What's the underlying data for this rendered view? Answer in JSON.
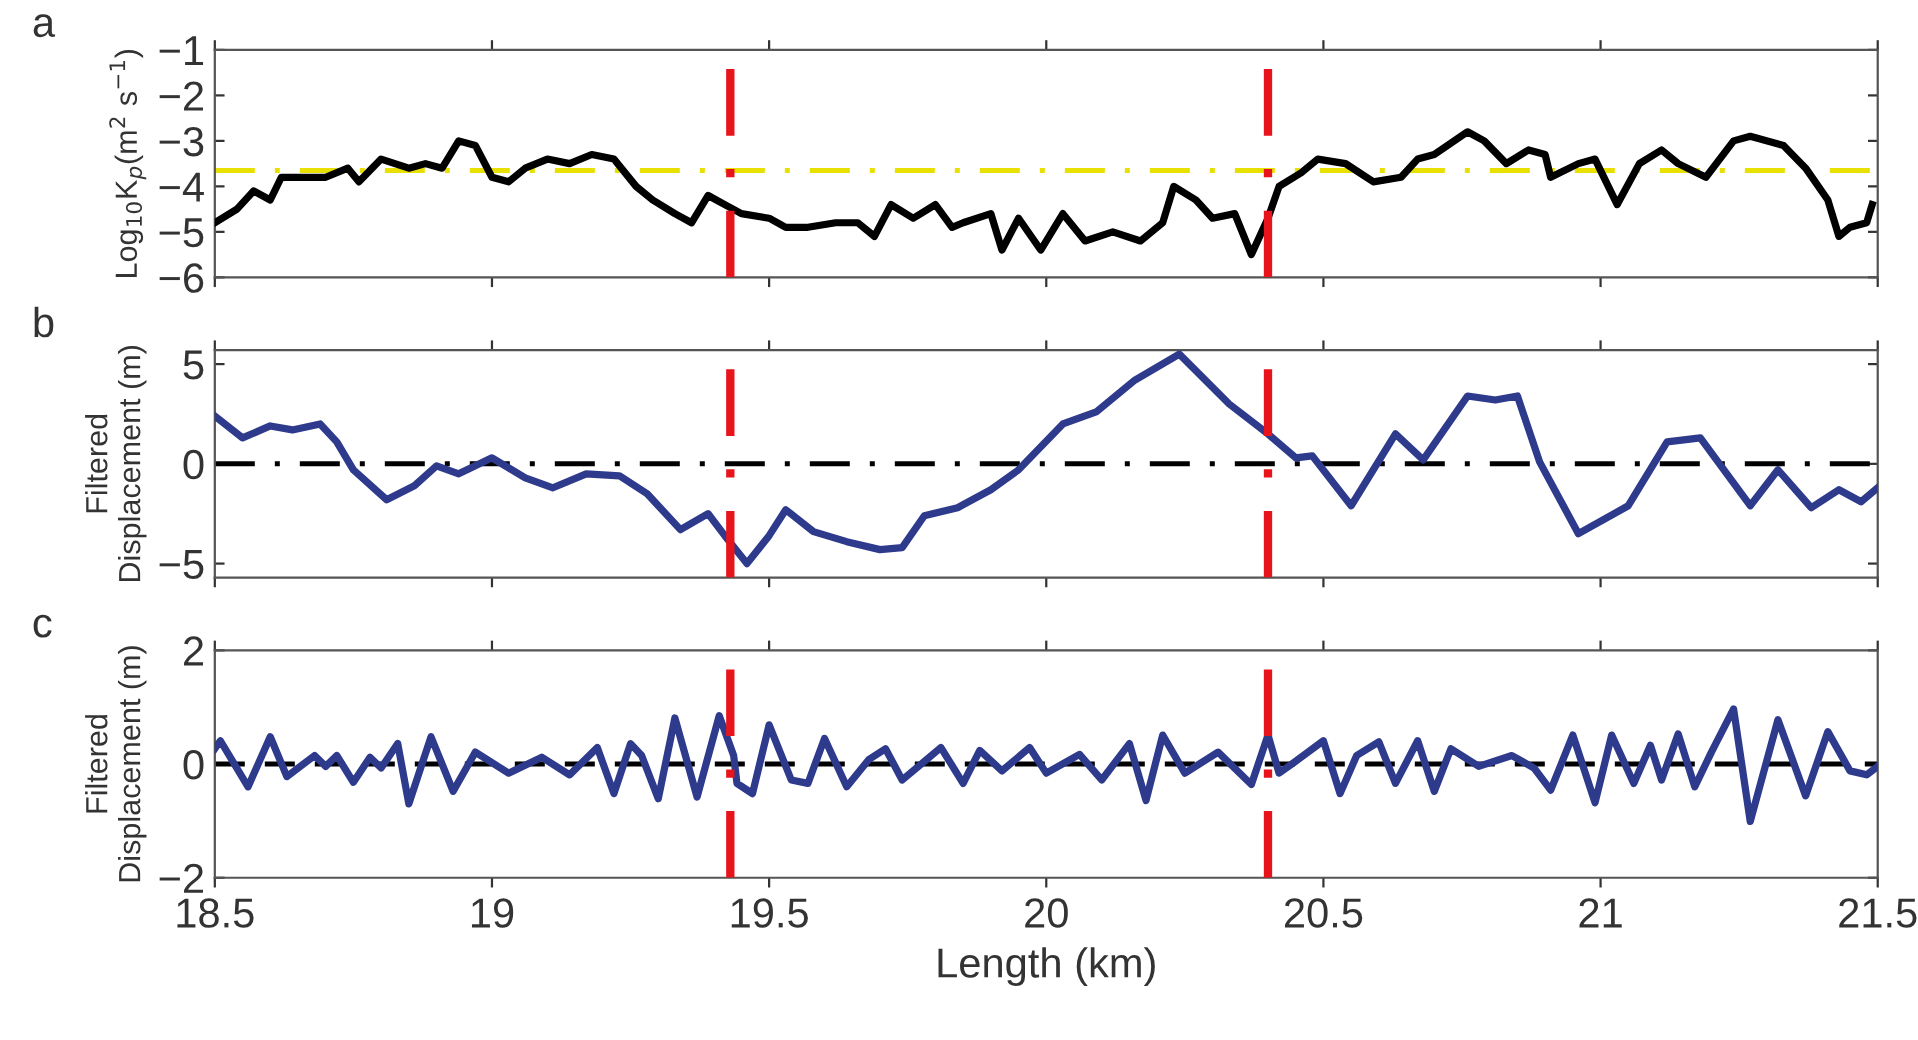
{
  "chart_data": [
    {
      "type": "line",
      "title": "a",
      "ylabel": "Log$_{10}$K$_{p}$(m$^{2}$ s$^{−1}$)",
      "xlim": [
        18.5,
        21.5
      ],
      "xticks": [
        18.5,
        19,
        19.5,
        20,
        20.5,
        21,
        21.5
      ],
      "ylim": [
        -6,
        -1
      ],
      "yticks": [
        -6,
        -5,
        -4,
        -3,
        -2,
        -1
      ],
      "tick_labels": "y",
      "grid": false,
      "legend": false,
      "series": [
        {
          "color": "#000000",
          "x": [
            18.5,
            18.54,
            18.57,
            18.6,
            18.62,
            18.67,
            18.7,
            18.74,
            18.76,
            18.8,
            18.85,
            18.88,
            18.91,
            18.94,
            18.97,
            19.0,
            19.03,
            19.06,
            19.1,
            19.14,
            19.18,
            19.22,
            19.26,
            19.29,
            19.33,
            19.36,
            19.39,
            19.42,
            19.45,
            19.5,
            19.53,
            19.57,
            19.62,
            19.66,
            19.69,
            19.72,
            19.76,
            19.8,
            19.83,
            19.85,
            19.9,
            19.92,
            19.95,
            19.99,
            20.03,
            20.07,
            20.12,
            20.17,
            20.21,
            20.23,
            20.27,
            20.3,
            20.34,
            20.37,
            20.4,
            20.42,
            20.46,
            20.49,
            20.54,
            20.59,
            20.64,
            20.67,
            20.7,
            20.76,
            20.79,
            20.83,
            20.87,
            20.9,
            20.91,
            20.96,
            20.99,
            21.03,
            21.07,
            21.11,
            21.14,
            21.19,
            21.24,
            21.27,
            21.33,
            21.37,
            21.41,
            21.43,
            21.45,
            21.48,
            21.49
          ],
          "values": [
            -4.8,
            -4.5,
            -4.1,
            -4.3,
            -3.8,
            -3.8,
            -3.8,
            -3.6,
            -3.9,
            -3.4,
            -3.6,
            -3.5,
            -3.6,
            -3.0,
            -3.1,
            -3.8,
            -3.9,
            -3.6,
            -3.4,
            -3.5,
            -3.3,
            -3.4,
            -4.0,
            -4.3,
            -4.6,
            -4.8,
            -4.2,
            -4.4,
            -4.6,
            -4.7,
            -4.9,
            -4.9,
            -4.8,
            -4.8,
            -5.1,
            -4.4,
            -4.7,
            -4.4,
            -4.9,
            -4.8,
            -4.6,
            -5.4,
            -4.7,
            -5.4,
            -4.6,
            -5.2,
            -5.0,
            -5.2,
            -4.8,
            -4.0,
            -4.3,
            -4.7,
            -4.6,
            -5.5,
            -4.7,
            -4.0,
            -3.7,
            -3.4,
            -3.5,
            -3.9,
            -3.8,
            -3.4,
            -3.3,
            -2.8,
            -3.0,
            -3.5,
            -3.2,
            -3.3,
            -3.8,
            -3.5,
            -3.4,
            -4.4,
            -3.5,
            -3.2,
            -3.5,
            -3.8,
            -3.0,
            -2.9,
            -3.1,
            -3.6,
            -4.3,
            -5.1,
            -4.9,
            -4.8,
            -4.4
          ]
        }
      ],
      "ref_lines": [
        {
          "axis": "y",
          "value": -3.65,
          "color": "#e8e000",
          "line_style": "dashdot"
        },
        {
          "axis": "x",
          "value": 19.43,
          "color": "#e8141c",
          "line_style": "dashdot"
        },
        {
          "axis": "x",
          "value": 20.4,
          "color": "#e8141c",
          "line_style": "dashdot"
        }
      ]
    },
    {
      "type": "line",
      "title": "b",
      "ylabel": "Filtered\nDisplacement (m)",
      "xlim": [
        18.5,
        21.5
      ],
      "xticks": [
        18.5,
        19,
        19.5,
        20,
        20.5,
        21,
        21.5
      ],
      "ylim": [
        -5.7,
        5.7
      ],
      "yticks": [
        -5,
        0,
        5
      ],
      "tick_labels": "y",
      "grid": false,
      "legend": false,
      "series": [
        {
          "color": "#2e3a8c",
          "x": [
            18.5,
            18.55,
            18.6,
            18.64,
            18.69,
            18.72,
            18.75,
            18.81,
            18.86,
            18.9,
            18.94,
            19.0,
            19.06,
            19.11,
            19.17,
            19.23,
            19.28,
            19.34,
            19.39,
            19.42,
            19.46,
            19.5,
            19.53,
            19.58,
            19.64,
            19.7,
            19.74,
            19.78,
            19.84,
            19.9,
            19.95,
            20.03,
            20.09,
            20.16,
            20.24,
            20.33,
            20.4,
            20.45,
            20.48,
            20.55,
            20.63,
            20.68,
            20.76,
            20.81,
            20.85,
            20.89,
            20.96,
            21.05,
            21.12,
            21.18,
            21.27,
            21.32,
            21.38,
            21.43,
            21.47,
            21.5
          ],
          "values": [
            2.4,
            1.3,
            1.9,
            1.7,
            2.0,
            1.1,
            -0.3,
            -1.8,
            -1.1,
            -0.1,
            -0.5,
            0.3,
            -0.7,
            -1.2,
            -0.5,
            -0.6,
            -1.5,
            -3.3,
            -2.5,
            -3.6,
            -5.0,
            -3.6,
            -2.3,
            -3.4,
            -3.9,
            -4.3,
            -4.2,
            -2.6,
            -2.2,
            -1.3,
            -0.3,
            2.0,
            2.6,
            4.2,
            5.5,
            3.0,
            1.5,
            0.3,
            0.4,
            -2.1,
            1.5,
            0.2,
            3.4,
            3.2,
            3.4,
            0.1,
            -3.5,
            -2.1,
            1.1,
            1.3,
            -2.1,
            -0.3,
            -2.2,
            -1.3,
            -1.9,
            -1.2
          ]
        }
      ],
      "ref_lines": [
        {
          "axis": "y",
          "value": 0,
          "color": "#000000",
          "line_style": "dashdot"
        },
        {
          "axis": "x",
          "value": 19.43,
          "color": "#e8141c",
          "line_style": "dashdot"
        },
        {
          "axis": "x",
          "value": 20.4,
          "color": "#e8141c",
          "line_style": "dashdot"
        }
      ]
    },
    {
      "type": "line",
      "title": "c",
      "ylabel": "Filtered\nDisplacement (m)",
      "xlabel": "Length (km)",
      "xlim": [
        18.5,
        21.5
      ],
      "xticks": [
        18.5,
        19,
        19.5,
        20,
        20.5,
        21,
        21.5
      ],
      "ylim": [
        -2,
        2
      ],
      "yticks": [
        -2,
        0,
        2
      ],
      "grid": false,
      "legend": false,
      "series": [
        {
          "color": "#2e3a8c",
          "x": [
            18.5,
            18.51,
            18.56,
            18.6,
            18.63,
            18.68,
            18.7,
            18.72,
            18.75,
            18.78,
            18.8,
            18.83,
            18.85,
            18.89,
            18.93,
            18.97,
            19.03,
            19.09,
            19.14,
            19.19,
            19.22,
            19.25,
            19.27,
            19.3,
            19.33,
            19.37,
            19.41,
            19.436,
            19.442,
            19.47,
            19.5,
            19.54,
            19.57,
            19.6,
            19.64,
            19.68,
            19.71,
            19.74,
            19.81,
            19.85,
            19.88,
            19.92,
            19.97,
            20.0,
            20.06,
            20.1,
            20.15,
            20.18,
            20.21,
            20.25,
            20.31,
            20.37,
            20.4,
            20.42,
            20.45,
            20.5,
            20.53,
            20.56,
            20.6,
            20.63,
            20.67,
            20.7,
            20.73,
            20.78,
            20.84,
            20.88,
            20.91,
            20.95,
            20.99,
            21.02,
            21.06,
            21.09,
            21.11,
            21.14,
            21.17,
            21.2,
            21.24,
            21.27,
            21.32,
            21.37,
            21.41,
            21.45,
            21.48,
            21.5
          ],
          "values": [
            0.27,
            0.41,
            -0.4,
            0.48,
            -0.22,
            0.15,
            -0.04,
            0.15,
            -0.32,
            0.12,
            -0.07,
            0.36,
            -0.7,
            0.48,
            -0.48,
            0.21,
            -0.16,
            0.12,
            -0.19,
            0.29,
            -0.52,
            0.36,
            0.15,
            -0.61,
            0.81,
            -0.58,
            0.85,
            0.15,
            -0.34,
            -0.52,
            0.69,
            -0.28,
            -0.34,
            0.45,
            -0.4,
            0.08,
            0.27,
            -0.28,
            0.29,
            -0.34,
            0.24,
            -0.12,
            0.29,
            -0.16,
            0.17,
            -0.28,
            0.36,
            -0.64,
            0.51,
            -0.16,
            0.21,
            -0.36,
            0.51,
            -0.16,
            0.05,
            0.41,
            -0.52,
            0.15,
            0.39,
            -0.34,
            0.41,
            -0.48,
            0.27,
            -0.04,
            0.15,
            -0.07,
            -0.46,
            0.51,
            -0.68,
            0.51,
            -0.34,
            0.33,
            -0.28,
            0.53,
            -0.4,
            0.21,
            0.97,
            -1.01,
            0.78,
            -0.56,
            0.57,
            -0.12,
            -0.19,
            -0.04
          ]
        }
      ],
      "ref_lines": [
        {
          "axis": "y",
          "value": 0,
          "color": "#000000",
          "line_style": "dashed"
        },
        {
          "axis": "x",
          "value": 19.43,
          "color": "#e8141c",
          "line_style": "dashdot"
        },
        {
          "axis": "x",
          "value": 20.4,
          "color": "#e8141c",
          "line_style": "dashdot"
        }
      ]
    }
  ]
}
